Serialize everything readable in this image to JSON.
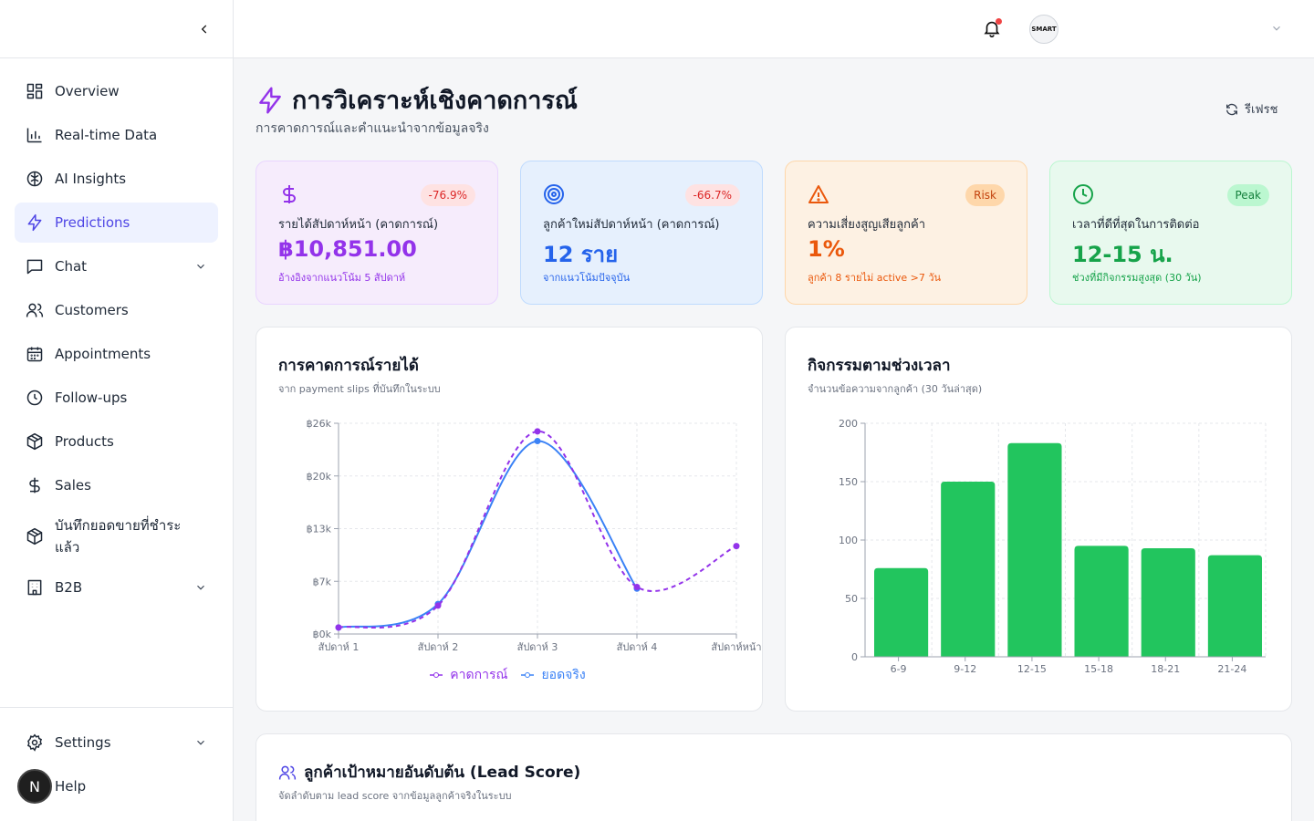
{
  "sidebar": {
    "items": [
      {
        "label": "Overview",
        "icon": "grid-icon"
      },
      {
        "label": "Real-time Data",
        "icon": "bar-chart-icon"
      },
      {
        "label": "AI Insights",
        "icon": "brain-icon"
      },
      {
        "label": "Predictions",
        "icon": "zap-icon",
        "active": true
      },
      {
        "label": "Chat",
        "icon": "chat-icon",
        "expandable": true
      },
      {
        "label": "Customers",
        "icon": "users-icon"
      },
      {
        "label": "Appointments",
        "icon": "calendar-icon"
      },
      {
        "label": "Follow-ups",
        "icon": "clock-icon"
      },
      {
        "label": "Products",
        "icon": "package-icon"
      },
      {
        "label": "Sales",
        "icon": "dollar-icon"
      },
      {
        "label": "บันทึกยอดขายที่ชำระแล้ว",
        "icon": "package-icon"
      },
      {
        "label": "B2B",
        "icon": "building-icon",
        "expandable": true
      }
    ],
    "settings_label": "Settings",
    "help_label": "Help",
    "avatar_letter": "N"
  },
  "header": {
    "user_avatar_text": "SMART",
    "accent": "#4f46e5"
  },
  "page": {
    "title": "การวิเคราะห์เชิงคาดการณ์",
    "subtitle": "การคาดการณ์และคำแนะนำจากข้อมูลจริง",
    "refresh_label": "รีเฟรช"
  },
  "cards": [
    {
      "badge": "-76.9%",
      "label": "รายได้สัปดาห์หน้า (คาดการณ์)",
      "value": "฿10,851.00",
      "note": "อ้างอิงจากแนวโน้ม 5 สัปดาห์",
      "icon": "dollar-icon",
      "color": "#9333ea"
    },
    {
      "badge": "-66.7%",
      "label": "ลูกค้าใหม่สัปดาห์หน้า (คาดการณ์)",
      "value": "12 ราย",
      "note": "จากแนวโน้มปัจจุบัน",
      "icon": "target-icon",
      "color": "#2563eb"
    },
    {
      "badge": "Risk",
      "label": "ความเสี่ยงสูญเสียลูกค้า",
      "value": "1%",
      "note": "ลูกค้า 8 รายไม่ active >7 วัน",
      "icon": "warning-icon",
      "color": "#ea580c"
    },
    {
      "badge": "Peak",
      "label": "เวลาที่ดีที่สุดในการติดต่อ",
      "value": "12-15 น.",
      "note": "ช่วงที่มีกิจกรรมสูงสุด (30 วัน)",
      "icon": "clock-icon",
      "color": "#16a34a"
    }
  ],
  "revenue_panel": {
    "title": "การคาดการณ์รายได้",
    "subtitle": "จาก payment slips ที่บันทึกในระบบ"
  },
  "activity_panel": {
    "title": "กิจกรรมตามช่วงเวลา",
    "subtitle": "จำนวนข้อความจากลูกค้า (30 วันล่าสุด)"
  },
  "lead_panel": {
    "title": "ลูกค้าเป้าหมายอันดับต้น (Lead Score)",
    "subtitle": "จัดลำดับตาม lead score จากข้อมูลลูกค้าจริงในระบบ"
  },
  "chart_data": [
    {
      "type": "line",
      "title": "การคาดการณ์รายได้",
      "categories": [
        "สัปดาห์ 1",
        "สัปดาห์ 2",
        "สัปดาห์ 3",
        "สัปดาห์ 4",
        "สัปดาห์หน้า"
      ],
      "yticks": [
        "฿0k",
        "฿7k",
        "฿13k",
        "฿20k",
        "฿26k"
      ],
      "ylim": [
        0,
        26000
      ],
      "series": [
        {
          "name": "คาดการณ์",
          "values": [
            800,
            3500,
            25000,
            5800,
            10851
          ],
          "color": "#9333ea",
          "dashed": true
        },
        {
          "name": "ยอดจริง",
          "values": [
            800,
            3700,
            23800,
            5600,
            null
          ],
          "color": "#3b82f6",
          "dashed": false
        }
      ],
      "grid": true,
      "legend": "bottom"
    },
    {
      "type": "bar",
      "title": "กิจกรรมตามช่วงเวลา",
      "categories": [
        "6-9",
        "9-12",
        "12-15",
        "15-18",
        "18-21",
        "21-24"
      ],
      "values": [
        76,
        150,
        183,
        95,
        93,
        87
      ],
      "ylim": [
        0,
        200
      ],
      "yticks": [
        "0",
        "50",
        "100",
        "150",
        "200"
      ],
      "color": "#22c55e",
      "grid": true
    }
  ]
}
